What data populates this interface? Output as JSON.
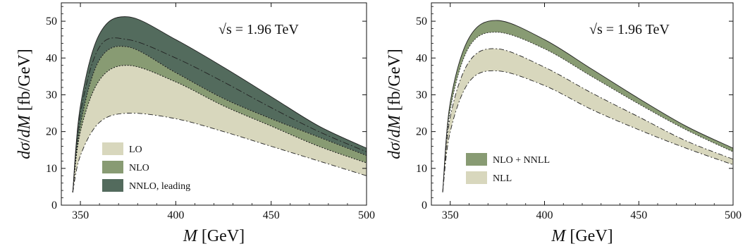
{
  "colors": {
    "lo": "#d8d7bd",
    "nlo": "#889b73",
    "nnlo": "#536b5d",
    "nlo_nnll": "#889b73",
    "nll": "#d8d7bd",
    "frame": "#111111"
  },
  "chart_data": [
    {
      "type": "area",
      "xlabel": "M [GeV]",
      "ylabel": "dσ/dM [fb/GeV]",
      "annotation": "√s = 1.96 TeV",
      "xlim": [
        340,
        500
      ],
      "ylim": [
        0,
        55
      ],
      "xticks": [
        "350",
        "400",
        "450",
        "500"
      ],
      "yticks": [
        "0",
        "10",
        "20",
        "30",
        "40",
        "50"
      ],
      "legend_position": "bottom-left",
      "legend": [
        {
          "label": "LO",
          "color_key": "lo"
        },
        {
          "label": "NLO",
          "color_key": "nlo"
        },
        {
          "label": "NNLO, leading",
          "color_key": "nnlo"
        }
      ],
      "x": [
        346,
        350,
        360,
        375,
        400,
        425,
        450,
        475,
        500
      ],
      "series": [
        {
          "name": "NNLO, leading",
          "color_key": "nnlo",
          "low": [
            3.5,
            22,
            39.5,
            43,
            36,
            29,
            23.5,
            18.5,
            13.5
          ],
          "high": [
            3.5,
            27,
            46.5,
            51.2,
            45,
            37.5,
            29.5,
            21.5,
            15.5
          ],
          "central": [
            3.5,
            25,
            43,
            45,
            40,
            33.5,
            26.5,
            20,
            14.5
          ]
        },
        {
          "name": "NLO",
          "color_key": "nlo",
          "low": [
            3.5,
            20,
            34,
            38,
            33.5,
            27,
            21.5,
            16,
            11.5
          ],
          "high": [
            3.5,
            22,
            39.5,
            43,
            36,
            29,
            23.5,
            18.5,
            13.5
          ]
        },
        {
          "name": "LO",
          "color_key": "lo",
          "low": [
            3.5,
            13.5,
            22.5,
            25,
            23.5,
            20,
            16,
            12,
            8
          ],
          "high": [
            3.5,
            20,
            34,
            38,
            33.5,
            27,
            21.5,
            16,
            11.5
          ]
        }
      ]
    },
    {
      "type": "area",
      "xlabel": "M [GeV]",
      "ylabel": "dσ/dM [fb/GeV]",
      "annotation": "√s = 1.96 TeV",
      "xlim": [
        340,
        500
      ],
      "ylim": [
        0,
        55
      ],
      "xticks": [
        "350",
        "400",
        "450",
        "500"
      ],
      "yticks": [
        "0",
        "10",
        "20",
        "30",
        "40",
        "50"
      ],
      "legend_position": "bottom-left",
      "legend": [
        {
          "label": "NLO + NNLL",
          "color_key": "nlo_nnll"
        },
        {
          "label": "NLL",
          "color_key": "nll"
        }
      ],
      "x": [
        346,
        350,
        360,
        375,
        400,
        425,
        450,
        475,
        500
      ],
      "series": [
        {
          "name": "NLO + NNLL",
          "color_key": "nlo_nnll",
          "low": [
            3.5,
            26,
            43,
            47,
            42.5,
            35,
            27.5,
            20.5,
            14.5
          ],
          "high": [
            3.5,
            28,
            45.5,
            50.2,
            45,
            37,
            29,
            21.5,
            15.5
          ]
        },
        {
          "name": "NLL",
          "color_key": "nll",
          "low": [
            3.5,
            20,
            33.5,
            36.5,
            32.5,
            26,
            20.5,
            15.5,
            11
          ],
          "high": [
            3.5,
            24,
            39,
            42.5,
            37.5,
            30.5,
            24,
            17.5,
            12.5
          ]
        }
      ]
    }
  ]
}
